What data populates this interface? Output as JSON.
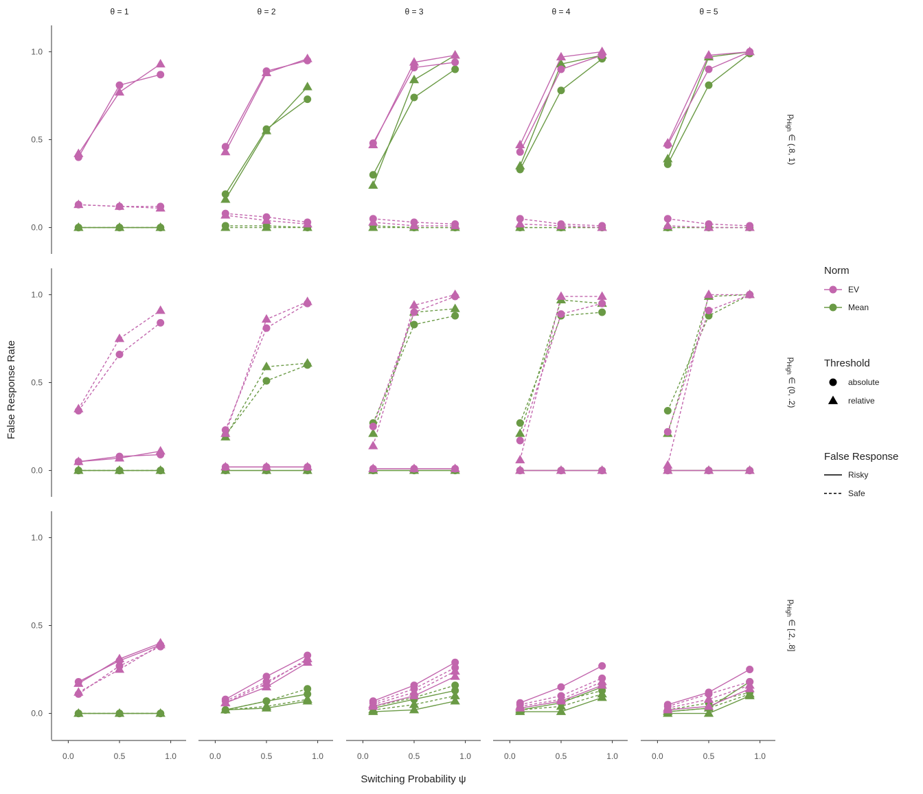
{
  "chart_data": {
    "type": "line",
    "title": "",
    "xlabel": "Switching Probability ψ",
    "ylabel": "False Response Rate",
    "x": [
      0.1,
      0.5,
      0.9
    ],
    "x_ticks": [
      0.0,
      0.5,
      1.0
    ],
    "x_tick_labels": [
      "0.0",
      "0.5",
      "1.0"
    ],
    "xlim": [
      -0.15,
      1.15
    ],
    "ylim": [
      -0.15,
      1.15
    ],
    "y_ticks": [
      0.0,
      0.5,
      1.0
    ],
    "y_tick_labels": [
      "0.0",
      "0.5",
      "1.0"
    ],
    "grid": false,
    "legend_placement": "right",
    "col_facets": [
      "θ = 1",
      "θ = 2",
      "θ = 3",
      "θ = 4",
      "θ = 5"
    ],
    "row_facets": [
      "pHigh ∈ (.8, 1)",
      "pHigh ∈ (0, .2)",
      "pHigh ∈ [.2, .8]"
    ],
    "row_facet_parts": [
      {
        "p": "p",
        "sub": "High",
        "rest": " ∈ (.8, 1)"
      },
      {
        "p": "p",
        "sub": "High",
        "rest": " ∈ (0, .2)"
      },
      {
        "p": "p",
        "sub": "High",
        "rest": " ∈ [.2, .8]"
      }
    ],
    "colors": {
      "EV": "#c266ad",
      "Mean": "#6a9a45"
    },
    "legend": {
      "norm_title": "Norm",
      "norm_items": [
        "EV",
        "Mean"
      ],
      "threshold_title": "Threshold",
      "threshold_items": [
        "absolute",
        "relative"
      ],
      "response_title": "False Response",
      "response_items": [
        "Risky",
        "Safe"
      ]
    },
    "panels": [
      [
        {
          "EV": {
            "absolute": {
              "Risky": [
                0.4,
                0.81,
                0.87
              ],
              "Safe": [
                0.13,
                0.12,
                0.12
              ]
            },
            "relative": {
              "Risky": [
                0.42,
                0.77,
                0.93
              ],
              "Safe": [
                0.13,
                0.12,
                0.11
              ]
            }
          },
          "Mean": {
            "absolute": {
              "Risky": [
                0.0,
                0.0,
                0.0
              ],
              "Safe": [
                0.0,
                0.0,
                0.0
              ]
            },
            "relative": {
              "Risky": [
                0.0,
                0.0,
                0.0
              ],
              "Safe": [
                0.0,
                0.0,
                0.0
              ]
            }
          }
        },
        {
          "EV": {
            "absolute": {
              "Risky": [
                0.46,
                0.89,
                0.95
              ],
              "Safe": [
                0.08,
                0.06,
                0.03
              ]
            },
            "relative": {
              "Risky": [
                0.43,
                0.88,
                0.96
              ],
              "Safe": [
                0.07,
                0.04,
                0.02
              ]
            }
          },
          "Mean": {
            "absolute": {
              "Risky": [
                0.19,
                0.56,
                0.73
              ],
              "Safe": [
                0.01,
                0.01,
                0.0
              ]
            },
            "relative": {
              "Risky": [
                0.16,
                0.55,
                0.8
              ],
              "Safe": [
                0.0,
                0.0,
                0.0
              ]
            }
          }
        },
        {
          "EV": {
            "absolute": {
              "Risky": [
                0.48,
                0.91,
                0.94
              ],
              "Safe": [
                0.05,
                0.03,
                0.02
              ]
            },
            "relative": {
              "Risky": [
                0.47,
                0.94,
                0.98
              ],
              "Safe": [
                0.03,
                0.01,
                0.01
              ]
            }
          },
          "Mean": {
            "absolute": {
              "Risky": [
                0.3,
                0.74,
                0.9
              ],
              "Safe": [
                0.01,
                0.0,
                0.0
              ]
            },
            "relative": {
              "Risky": [
                0.24,
                0.84,
                0.98
              ],
              "Safe": [
                0.0,
                0.0,
                0.0
              ]
            }
          }
        },
        {
          "EV": {
            "absolute": {
              "Risky": [
                0.43,
                0.9,
                0.98
              ],
              "Safe": [
                0.05,
                0.02,
                0.01
              ]
            },
            "relative": {
              "Risky": [
                0.47,
                0.97,
                1.0
              ],
              "Safe": [
                0.02,
                0.01,
                0.0
              ]
            }
          },
          "Mean": {
            "absolute": {
              "Risky": [
                0.33,
                0.78,
                0.96
              ],
              "Safe": [
                0.0,
                0.0,
                0.0
              ]
            },
            "relative": {
              "Risky": [
                0.35,
                0.93,
                0.98
              ],
              "Safe": [
                0.0,
                0.0,
                0.0
              ]
            }
          }
        },
        {
          "EV": {
            "absolute": {
              "Risky": [
                0.47,
                0.9,
                1.0
              ],
              "Safe": [
                0.05,
                0.02,
                0.01
              ]
            },
            "relative": {
              "Risky": [
                0.48,
                0.98,
                1.0
              ],
              "Safe": [
                0.01,
                0.0,
                0.0
              ]
            }
          },
          "Mean": {
            "absolute": {
              "Risky": [
                0.36,
                0.81,
                0.99
              ],
              "Safe": [
                0.0,
                0.0,
                0.0
              ]
            },
            "relative": {
              "Risky": [
                0.39,
                0.97,
                1.0
              ],
              "Safe": [
                0.0,
                0.0,
                0.0
              ]
            }
          }
        }
      ],
      [
        {
          "EV": {
            "absolute": {
              "Risky": [
                0.05,
                0.08,
                0.09
              ],
              "Safe": [
                0.34,
                0.66,
                0.84
              ]
            },
            "relative": {
              "Risky": [
                0.05,
                0.07,
                0.11
              ],
              "Safe": [
                0.35,
                0.75,
                0.91
              ]
            }
          },
          "Mean": {
            "absolute": {
              "Risky": [
                0.0,
                0.0,
                0.0
              ],
              "Safe": [
                0.0,
                0.0,
                0.0
              ]
            },
            "relative": {
              "Risky": [
                0.0,
                0.0,
                0.0
              ],
              "Safe": [
                0.0,
                0.0,
                0.0
              ]
            }
          }
        },
        {
          "EV": {
            "absolute": {
              "Risky": [
                0.02,
                0.02,
                0.02
              ],
              "Safe": [
                0.23,
                0.81,
                0.95
              ]
            },
            "relative": {
              "Risky": [
                0.02,
                0.02,
                0.02
              ],
              "Safe": [
                0.21,
                0.86,
                0.96
              ]
            }
          },
          "Mean": {
            "absolute": {
              "Risky": [
                0.0,
                0.0,
                0.0
              ],
              "Safe": [
                0.2,
                0.51,
                0.6
              ]
            },
            "relative": {
              "Risky": [
                0.0,
                0.0,
                0.0
              ],
              "Safe": [
                0.19,
                0.59,
                0.61
              ]
            }
          }
        },
        {
          "EV": {
            "absolute": {
              "Risky": [
                0.01,
                0.01,
                0.01
              ],
              "Safe": [
                0.25,
                0.9,
                0.99
              ]
            },
            "relative": {
              "Risky": [
                0.01,
                0.01,
                0.01
              ],
              "Safe": [
                0.14,
                0.94,
                1.0
              ]
            }
          },
          "Mean": {
            "absolute": {
              "Risky": [
                0.0,
                0.0,
                0.0
              ],
              "Safe": [
                0.27,
                0.83,
                0.88
              ]
            },
            "relative": {
              "Risky": [
                0.0,
                0.0,
                0.0
              ],
              "Safe": [
                0.21,
                0.9,
                0.92
              ]
            }
          }
        },
        {
          "EV": {
            "absolute": {
              "Risky": [
                0.0,
                0.0,
                0.0
              ],
              "Safe": [
                0.17,
                0.89,
                0.95
              ]
            },
            "relative": {
              "Risky": [
                0.0,
                0.0,
                0.0
              ],
              "Safe": [
                0.06,
                0.99,
                0.99
              ]
            }
          },
          "Mean": {
            "absolute": {
              "Risky": [
                0.0,
                0.0,
                0.0
              ],
              "Safe": [
                0.27,
                0.88,
                0.9
              ]
            },
            "relative": {
              "Risky": [
                0.0,
                0.0,
                0.0
              ],
              "Safe": [
                0.21,
                0.97,
                0.95
              ]
            }
          }
        },
        {
          "EV": {
            "absolute": {
              "Risky": [
                0.0,
                0.0,
                0.0
              ],
              "Safe": [
                0.22,
                0.91,
                1.0
              ]
            },
            "relative": {
              "Risky": [
                0.0,
                0.0,
                0.0
              ],
              "Safe": [
                0.03,
                1.0,
                1.0
              ]
            }
          },
          "Mean": {
            "absolute": {
              "Risky": [
                0.0,
                0.0,
                0.0
              ],
              "Safe": [
                0.34,
                0.88,
                1.0
              ]
            },
            "relative": {
              "Risky": [
                0.0,
                0.0,
                0.0
              ],
              "Safe": [
                0.21,
                0.99,
                1.0
              ]
            }
          }
        }
      ],
      [
        {
          "EV": {
            "absolute": {
              "Risky": [
                0.18,
                0.3,
                0.39
              ],
              "Safe": [
                0.11,
                0.27,
                0.38
              ]
            },
            "relative": {
              "Risky": [
                0.17,
                0.31,
                0.4
              ],
              "Safe": [
                0.12,
                0.25,
                0.39
              ]
            }
          },
          "Mean": {
            "absolute": {
              "Risky": [
                0.0,
                0.0,
                0.0
              ],
              "Safe": [
                0.0,
                0.0,
                0.0
              ]
            },
            "relative": {
              "Risky": [
                0.0,
                0.0,
                0.0
              ],
              "Safe": [
                0.0,
                0.0,
                0.0
              ]
            }
          }
        },
        {
          "EV": {
            "absolute": {
              "Risky": [
                0.08,
                0.21,
                0.33
              ],
              "Safe": [
                0.07,
                0.18,
                0.3
              ]
            },
            "relative": {
              "Risky": [
                0.06,
                0.15,
                0.29
              ],
              "Safe": [
                0.06,
                0.17,
                0.31
              ]
            }
          },
          "Mean": {
            "absolute": {
              "Risky": [
                0.02,
                0.07,
                0.11
              ],
              "Safe": [
                0.02,
                0.07,
                0.14
              ]
            },
            "relative": {
              "Risky": [
                0.02,
                0.03,
                0.07
              ],
              "Safe": [
                0.02,
                0.04,
                0.08
              ]
            }
          }
        },
        {
          "EV": {
            "absolute": {
              "Risky": [
                0.07,
                0.16,
                0.29
              ],
              "Safe": [
                0.06,
                0.14,
                0.26
              ]
            },
            "relative": {
              "Risky": [
                0.04,
                0.1,
                0.21
              ],
              "Safe": [
                0.05,
                0.12,
                0.24
              ]
            }
          },
          "Mean": {
            "absolute": {
              "Risky": [
                0.03,
                0.08,
                0.13
              ],
              "Safe": [
                0.04,
                0.09,
                0.16
              ]
            },
            "relative": {
              "Risky": [
                0.01,
                0.02,
                0.07
              ],
              "Safe": [
                0.02,
                0.05,
                0.1
              ]
            }
          }
        },
        {
          "EV": {
            "absolute": {
              "Risky": [
                0.06,
                0.15,
                0.27
              ],
              "Safe": [
                0.05,
                0.1,
                0.2
              ]
            },
            "relative": {
              "Risky": [
                0.03,
                0.07,
                0.16
              ],
              "Safe": [
                0.04,
                0.08,
                0.18
              ]
            }
          },
          "Mean": {
            "absolute": {
              "Risky": [
                0.02,
                0.06,
                0.15
              ],
              "Safe": [
                0.03,
                0.07,
                0.13
              ]
            },
            "relative": {
              "Risky": [
                0.01,
                0.01,
                0.09
              ],
              "Safe": [
                0.02,
                0.04,
                0.11
              ]
            }
          }
        },
        {
          "EV": {
            "absolute": {
              "Risky": [
                0.05,
                0.12,
                0.25
              ],
              "Safe": [
                0.04,
                0.11,
                0.18
              ]
            },
            "relative": {
              "Risky": [
                0.02,
                0.04,
                0.14
              ],
              "Safe": [
                0.03,
                0.08,
                0.16
              ]
            }
          },
          "Mean": {
            "absolute": {
              "Risky": [
                0.01,
                0.03,
                0.18
              ],
              "Safe": [
                0.02,
                0.06,
                0.12
              ]
            },
            "relative": {
              "Risky": [
                0.0,
                0.0,
                0.1
              ],
              "Safe": [
                0.01,
                0.03,
                0.11
              ]
            }
          }
        }
      ]
    ]
  }
}
